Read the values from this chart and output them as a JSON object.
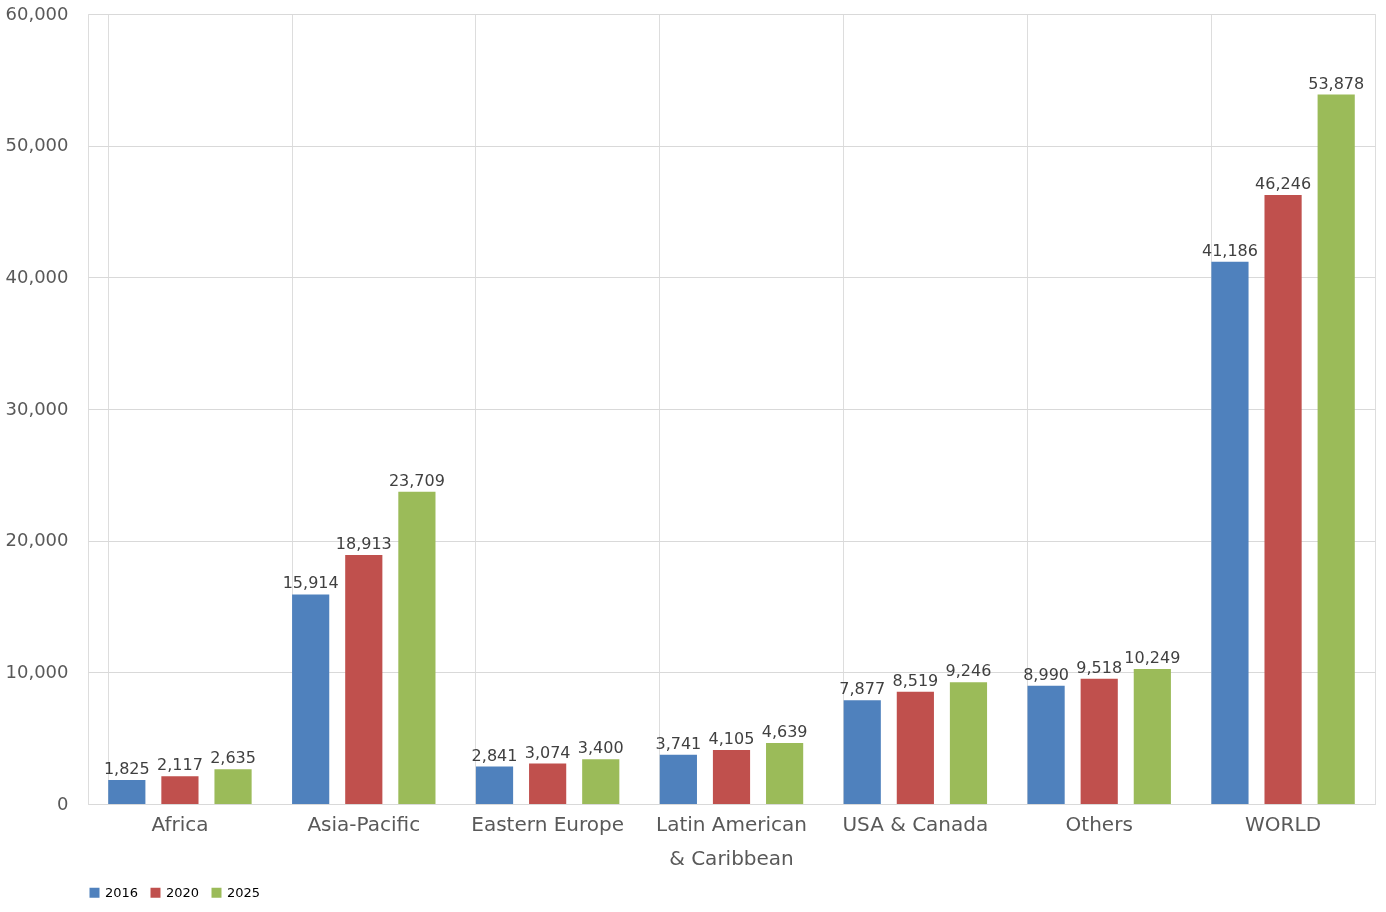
{
  "chart_data": {
    "type": "bar",
    "categories": [
      "Africa",
      "Asia-Pacific",
      "Eastern Europe",
      "Latin American & Caribbean",
      "USA & Canada",
      "Others",
      "WORLD"
    ],
    "series": [
      {
        "name": "2016",
        "color": "#4f81bd",
        "values": [
          1825,
          15914,
          2841,
          3741,
          7877,
          8990,
          41186
        ],
        "value_labels": [
          "1,825",
          "15,914",
          "2,841",
          "3,741",
          "7,877",
          "8,990",
          "41,186"
        ]
      },
      {
        "name": "2020",
        "color": "#c0504d",
        "values": [
          2117,
          18913,
          3074,
          4105,
          8519,
          9518,
          46246
        ],
        "value_labels": [
          "2,117",
          "18,913",
          "3,074",
          "4,105",
          "8,519",
          "9,518",
          "46,246"
        ]
      },
      {
        "name": "2025",
        "color": "#9bbb59",
        "values": [
          2635,
          23709,
          3400,
          4639,
          9246,
          10249,
          53878
        ],
        "value_labels": [
          "2,635",
          "23,709",
          "3,400",
          "4,639",
          "9,246",
          "10,249",
          "53,878"
        ]
      }
    ],
    "ylim": [
      0,
      60000
    ],
    "yticks": [
      0,
      {
        "value": 10000,
        "label": "10,000"
      },
      {
        "value": 20000,
        "label": "20,000"
      },
      {
        "value": 30000,
        "label": "30,000"
      },
      {
        "value": 40000,
        "label": "40,000"
      },
      {
        "value": 50000,
        "label": "50,000"
      },
      {
        "value": 60000,
        "label": "60,000"
      }
    ],
    "grid": true,
    "legend": "bottom"
  }
}
